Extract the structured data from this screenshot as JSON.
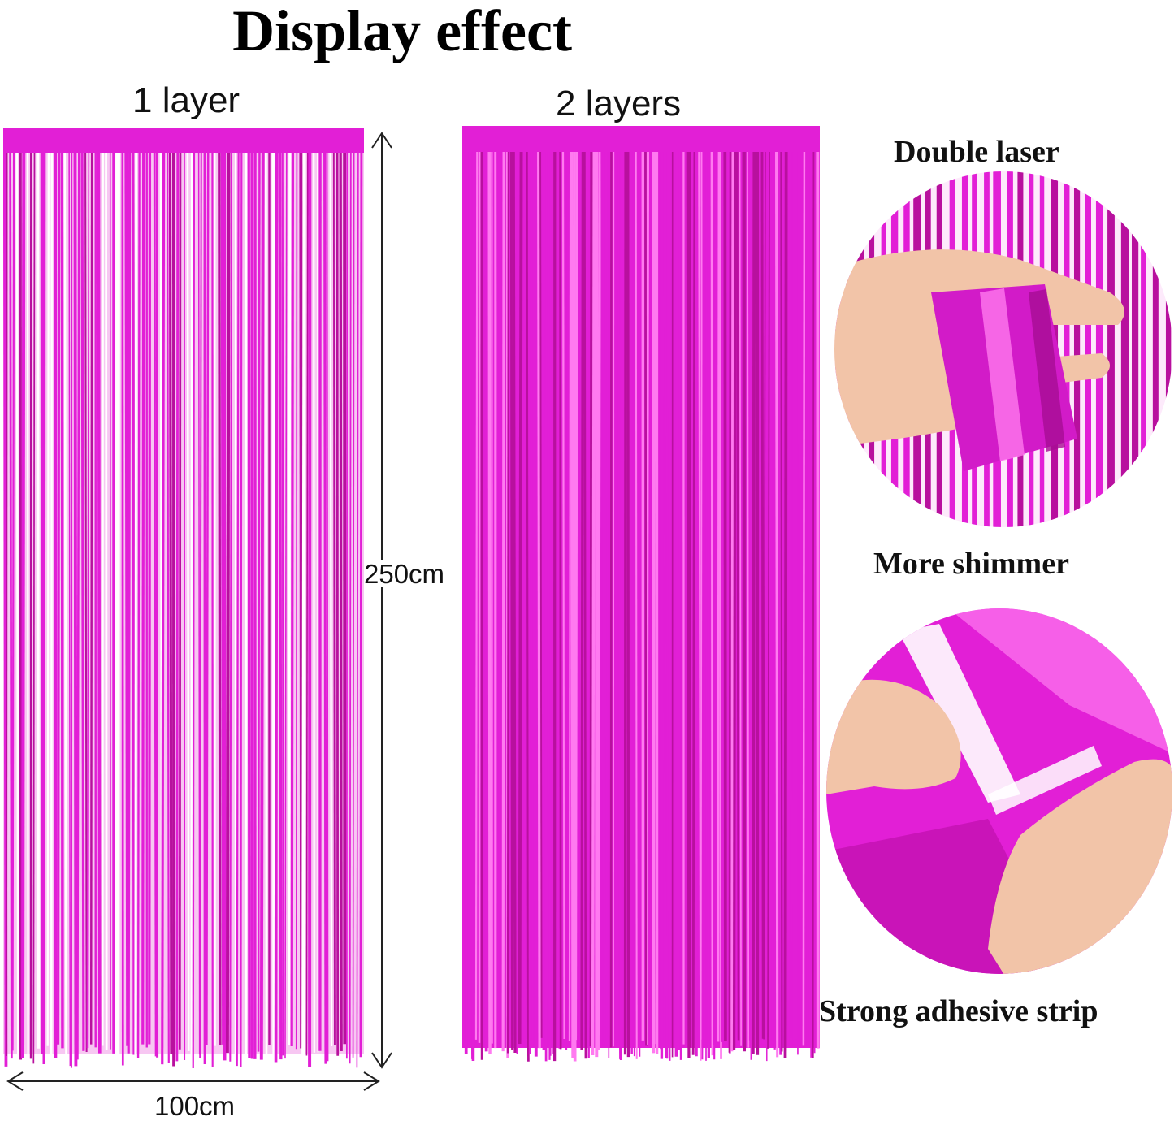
{
  "title": "Display effect",
  "panels": [
    {
      "label": "1 layer"
    },
    {
      "label": "2 layers"
    }
  ],
  "dimensions": {
    "height": "250cm",
    "width": "100cm"
  },
  "features": [
    {
      "label": "Double laser"
    },
    {
      "label": "More shimmer"
    },
    {
      "label": "Strong adhesive strip"
    }
  ],
  "colors": {
    "foil": "#e21fd6",
    "foil_dark": "#b8109e",
    "foil_light": "#ff7af0",
    "skin": "#f2c4a8"
  }
}
